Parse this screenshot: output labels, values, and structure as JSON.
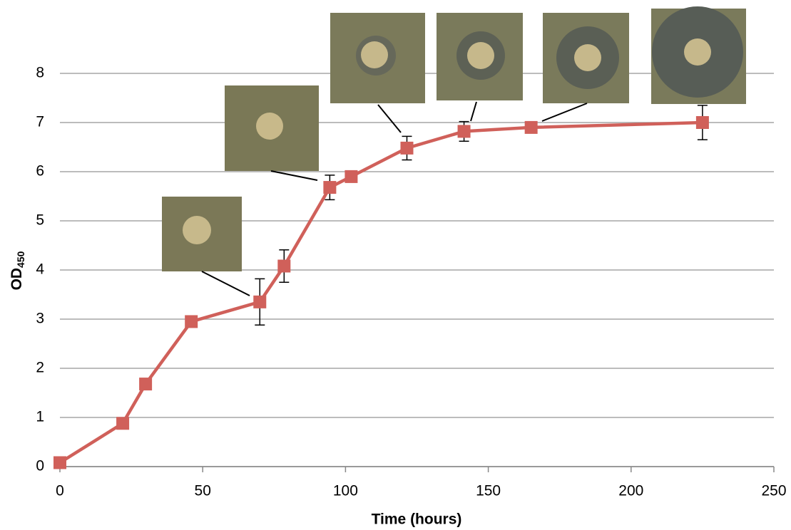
{
  "chart_data": {
    "type": "line",
    "x_label": "Time (hours)",
    "y_label": "OD",
    "y_label_subscript": "450",
    "x": [
      0,
      22,
      30,
      46,
      70,
      78.5,
      94.5,
      102,
      121.5,
      141.5,
      165,
      225
    ],
    "values": [
      0.08,
      0.88,
      1.68,
      2.95,
      3.35,
      4.08,
      5.68,
      5.9,
      6.48,
      6.82,
      6.9,
      7.0
    ],
    "errors": [
      null,
      null,
      null,
      null,
      0.47,
      0.33,
      0.25,
      null,
      0.24,
      0.2,
      null,
      0.35
    ],
    "color": "#d0605a",
    "xlim": [
      0,
      250
    ],
    "xticks": [
      0,
      50,
      100,
      150,
      200,
      250
    ],
    "ylim": [
      0,
      8
    ],
    "yticks": [
      0,
      1,
      2,
      3,
      4,
      5,
      6,
      7,
      8
    ],
    "grid": true
  }
}
